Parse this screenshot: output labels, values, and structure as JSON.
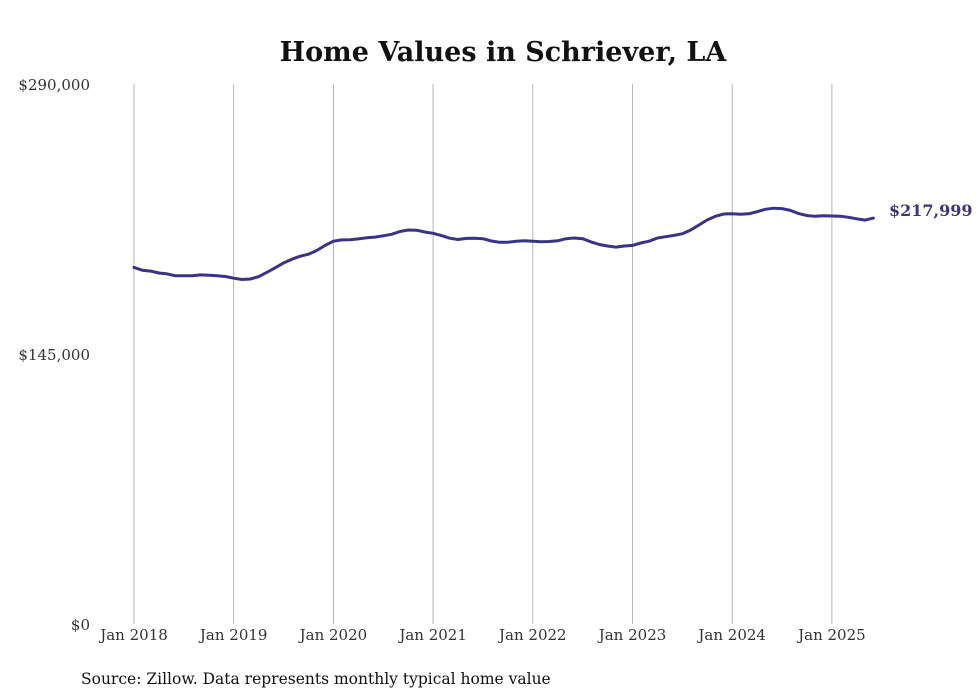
{
  "chart_data": {
    "type": "line",
    "title": "Home Values in Schriever, LA",
    "ylim": [
      0,
      290000
    ],
    "y_ticks": [
      {
        "value": 290000,
        "label": "$290,000"
      },
      {
        "value": 145000,
        "label": "$145,000"
      },
      {
        "value": 0,
        "label": "$0"
      }
    ],
    "x_range": [
      "2018-01",
      "2025-06"
    ],
    "x_ticks": [
      {
        "date": "2018-01",
        "label": "Jan 2018"
      },
      {
        "date": "2019-01",
        "label": "Jan 2019"
      },
      {
        "date": "2020-01",
        "label": "Jan 2020"
      },
      {
        "date": "2021-01",
        "label": "Jan 2021"
      },
      {
        "date": "2022-01",
        "label": "Jan 2022"
      },
      {
        "date": "2023-01",
        "label": "Jan 2023"
      },
      {
        "date": "2024-01",
        "label": "Jan 2024"
      },
      {
        "date": "2025-01",
        "label": "Jan 2025"
      }
    ],
    "grid": "vertical",
    "series": [
      {
        "color": "#3b3289",
        "points": [
          [
            "2018-01",
            191500
          ],
          [
            "2018-02",
            190000
          ],
          [
            "2018-03",
            189500
          ],
          [
            "2018-04",
            188500
          ],
          [
            "2018-05",
            188000
          ],
          [
            "2018-06",
            187000
          ],
          [
            "2018-07",
            187000
          ],
          [
            "2018-08",
            187000
          ],
          [
            "2018-09",
            187500
          ],
          [
            "2018-10",
            187300
          ],
          [
            "2018-11",
            187000
          ],
          [
            "2018-12",
            186600
          ],
          [
            "2019-01",
            185700
          ],
          [
            "2019-02",
            185000
          ],
          [
            "2019-03",
            185300
          ],
          [
            "2019-04",
            186500
          ],
          [
            "2019-05",
            188900
          ],
          [
            "2019-06",
            191300
          ],
          [
            "2019-07",
            193900
          ],
          [
            "2019-08",
            195900
          ],
          [
            "2019-09",
            197500
          ],
          [
            "2019-10",
            198600
          ],
          [
            "2019-11",
            200600
          ],
          [
            "2019-12",
            203300
          ],
          [
            "2020-01",
            205600
          ],
          [
            "2020-02",
            206300
          ],
          [
            "2020-03",
            206400
          ],
          [
            "2020-04",
            206800
          ],
          [
            "2020-05",
            207400
          ],
          [
            "2020-06",
            207800
          ],
          [
            "2020-07",
            208500
          ],
          [
            "2020-08",
            209300
          ],
          [
            "2020-09",
            210800
          ],
          [
            "2020-10",
            211600
          ],
          [
            "2020-11",
            211500
          ],
          [
            "2020-12",
            210500
          ],
          [
            "2021-01",
            209800
          ],
          [
            "2021-02",
            208600
          ],
          [
            "2021-03",
            207200
          ],
          [
            "2021-04",
            206500
          ],
          [
            "2021-05",
            207100
          ],
          [
            "2021-06",
            207200
          ],
          [
            "2021-07",
            206900
          ],
          [
            "2021-08",
            205700
          ],
          [
            "2021-09",
            205000
          ],
          [
            "2021-10",
            205000
          ],
          [
            "2021-11",
            205500
          ],
          [
            "2021-12",
            205800
          ],
          [
            "2022-01",
            205500
          ],
          [
            "2022-02",
            205300
          ],
          [
            "2022-03",
            205400
          ],
          [
            "2022-04",
            205800
          ],
          [
            "2022-05",
            206900
          ],
          [
            "2022-06",
            207300
          ],
          [
            "2022-07",
            206900
          ],
          [
            "2022-08",
            205200
          ],
          [
            "2022-09",
            203800
          ],
          [
            "2022-10",
            203000
          ],
          [
            "2022-11",
            202400
          ],
          [
            "2022-12",
            203000
          ],
          [
            "2023-01",
            203300
          ],
          [
            "2023-02",
            204600
          ],
          [
            "2023-03",
            205600
          ],
          [
            "2023-04",
            207300
          ],
          [
            "2023-05",
            208000
          ],
          [
            "2023-06",
            208700
          ],
          [
            "2023-07",
            209600
          ],
          [
            "2023-08",
            211600
          ],
          [
            "2023-09",
            214300
          ],
          [
            "2023-10",
            217000
          ],
          [
            "2023-11",
            219000
          ],
          [
            "2023-12",
            220200
          ],
          [
            "2024-01",
            220300
          ],
          [
            "2024-02",
            220000
          ],
          [
            "2024-03",
            220300
          ],
          [
            "2024-04",
            221400
          ],
          [
            "2024-05",
            222700
          ],
          [
            "2024-06",
            223300
          ],
          [
            "2024-07",
            223100
          ],
          [
            "2024-08",
            222100
          ],
          [
            "2024-09",
            220400
          ],
          [
            "2024-10",
            219300
          ],
          [
            "2024-11",
            219000
          ],
          [
            "2024-12",
            219200
          ],
          [
            "2025-01",
            219100
          ],
          [
            "2025-02",
            219000
          ],
          [
            "2025-03",
            218400
          ],
          [
            "2025-04",
            217600
          ],
          [
            "2025-05",
            216900
          ],
          [
            "2025-06",
            217999
          ]
        ]
      }
    ],
    "end_label": "$217,999",
    "source": "Source: Zillow. Data represents monthly typical home value"
  }
}
